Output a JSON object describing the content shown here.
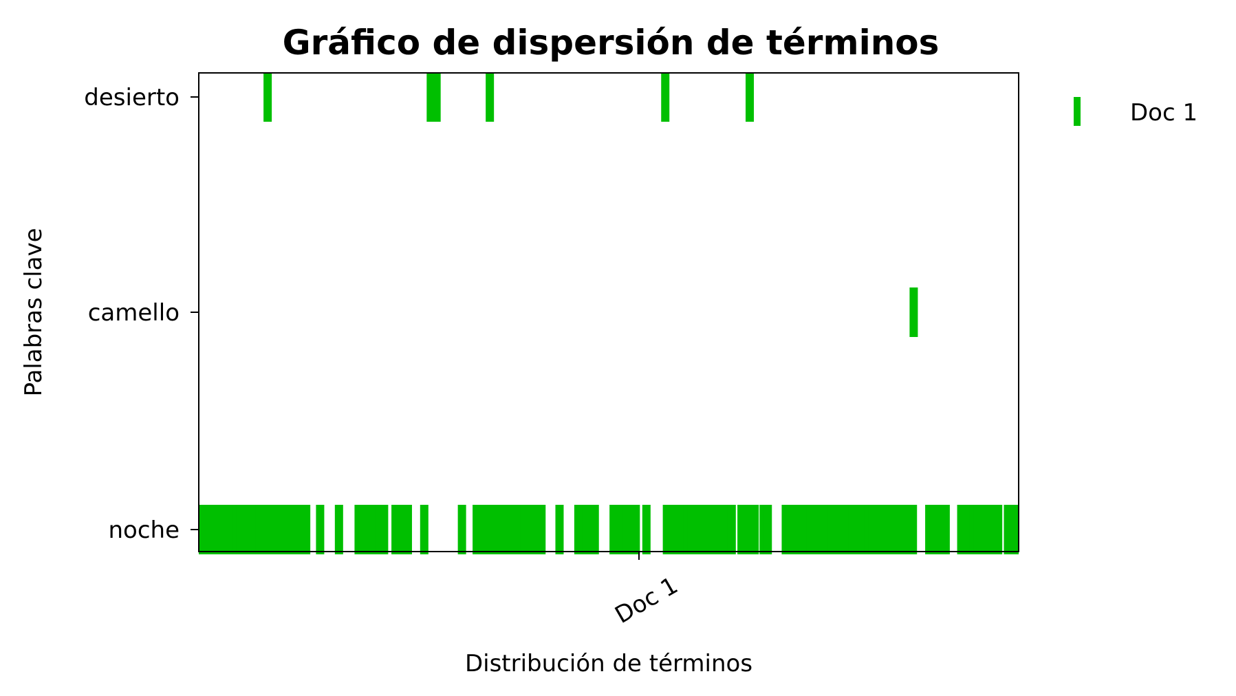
{
  "chart_data": {
    "type": "scatter",
    "title": "Gráfico de dispersión de términos",
    "xlabel": "Distribución de términos",
    "ylabel": "Palabras clave",
    "x_ticks": [
      "Doc 1"
    ],
    "y_categories": [
      "noche",
      "camello",
      "desierto"
    ],
    "grid": false,
    "legend_position": "outside-top-right",
    "series": [
      {
        "name": "Doc 1",
        "color": "#00bf00",
        "marker": "vertical-line",
        "points": {
          "desierto": [
            0.084,
            0.283,
            0.287,
            0.29,
            0.355,
            0.569,
            0.672
          ],
          "camello": [
            0.872
          ],
          "noche": [
            0.002,
            0.006,
            0.011,
            0.016,
            0.025,
            0.03,
            0.035,
            0.04,
            0.046,
            0.051,
            0.056,
            0.062,
            0.068,
            0.074,
            0.081,
            0.087,
            0.092,
            0.097,
            0.103,
            0.108,
            0.114,
            0.121,
            0.126,
            0.131,
            0.148,
            0.171,
            0.195,
            0.2,
            0.205,
            0.21,
            0.215,
            0.22,
            0.226,
            0.24,
            0.245,
            0.25,
            0.255,
            0.275,
            0.321,
            0.339,
            0.344,
            0.349,
            0.354,
            0.359,
            0.364,
            0.369,
            0.374,
            0.382,
            0.387,
            0.392,
            0.397,
            0.402,
            0.408,
            0.413,
            0.418,
            0.44,
            0.463,
            0.468,
            0.473,
            0.478,
            0.483,
            0.506,
            0.512,
            0.517,
            0.522,
            0.527,
            0.533,
            0.546,
            0.571,
            0.576,
            0.581,
            0.586,
            0.591,
            0.596,
            0.601,
            0.606,
            0.611,
            0.616,
            0.621,
            0.626,
            0.631,
            0.636,
            0.642,
            0.65,
            0.662,
            0.667,
            0.672,
            0.678,
            0.689,
            0.694,
            0.716,
            0.721,
            0.726,
            0.731,
            0.736,
            0.741,
            0.746,
            0.754,
            0.762,
            0.767,
            0.772,
            0.777,
            0.782,
            0.787,
            0.792,
            0.797,
            0.802,
            0.807,
            0.812,
            0.817,
            0.822,
            0.827,
            0.832,
            0.837,
            0.842,
            0.847,
            0.852,
            0.857,
            0.862,
            0.871,
            0.891,
            0.896,
            0.901,
            0.906,
            0.911,
            0.93,
            0.935,
            0.94,
            0.945,
            0.95,
            0.955,
            0.96,
            0.965,
            0.97,
            0.975,
            0.987,
            0.992,
            0.997
          ]
        }
      }
    ]
  }
}
